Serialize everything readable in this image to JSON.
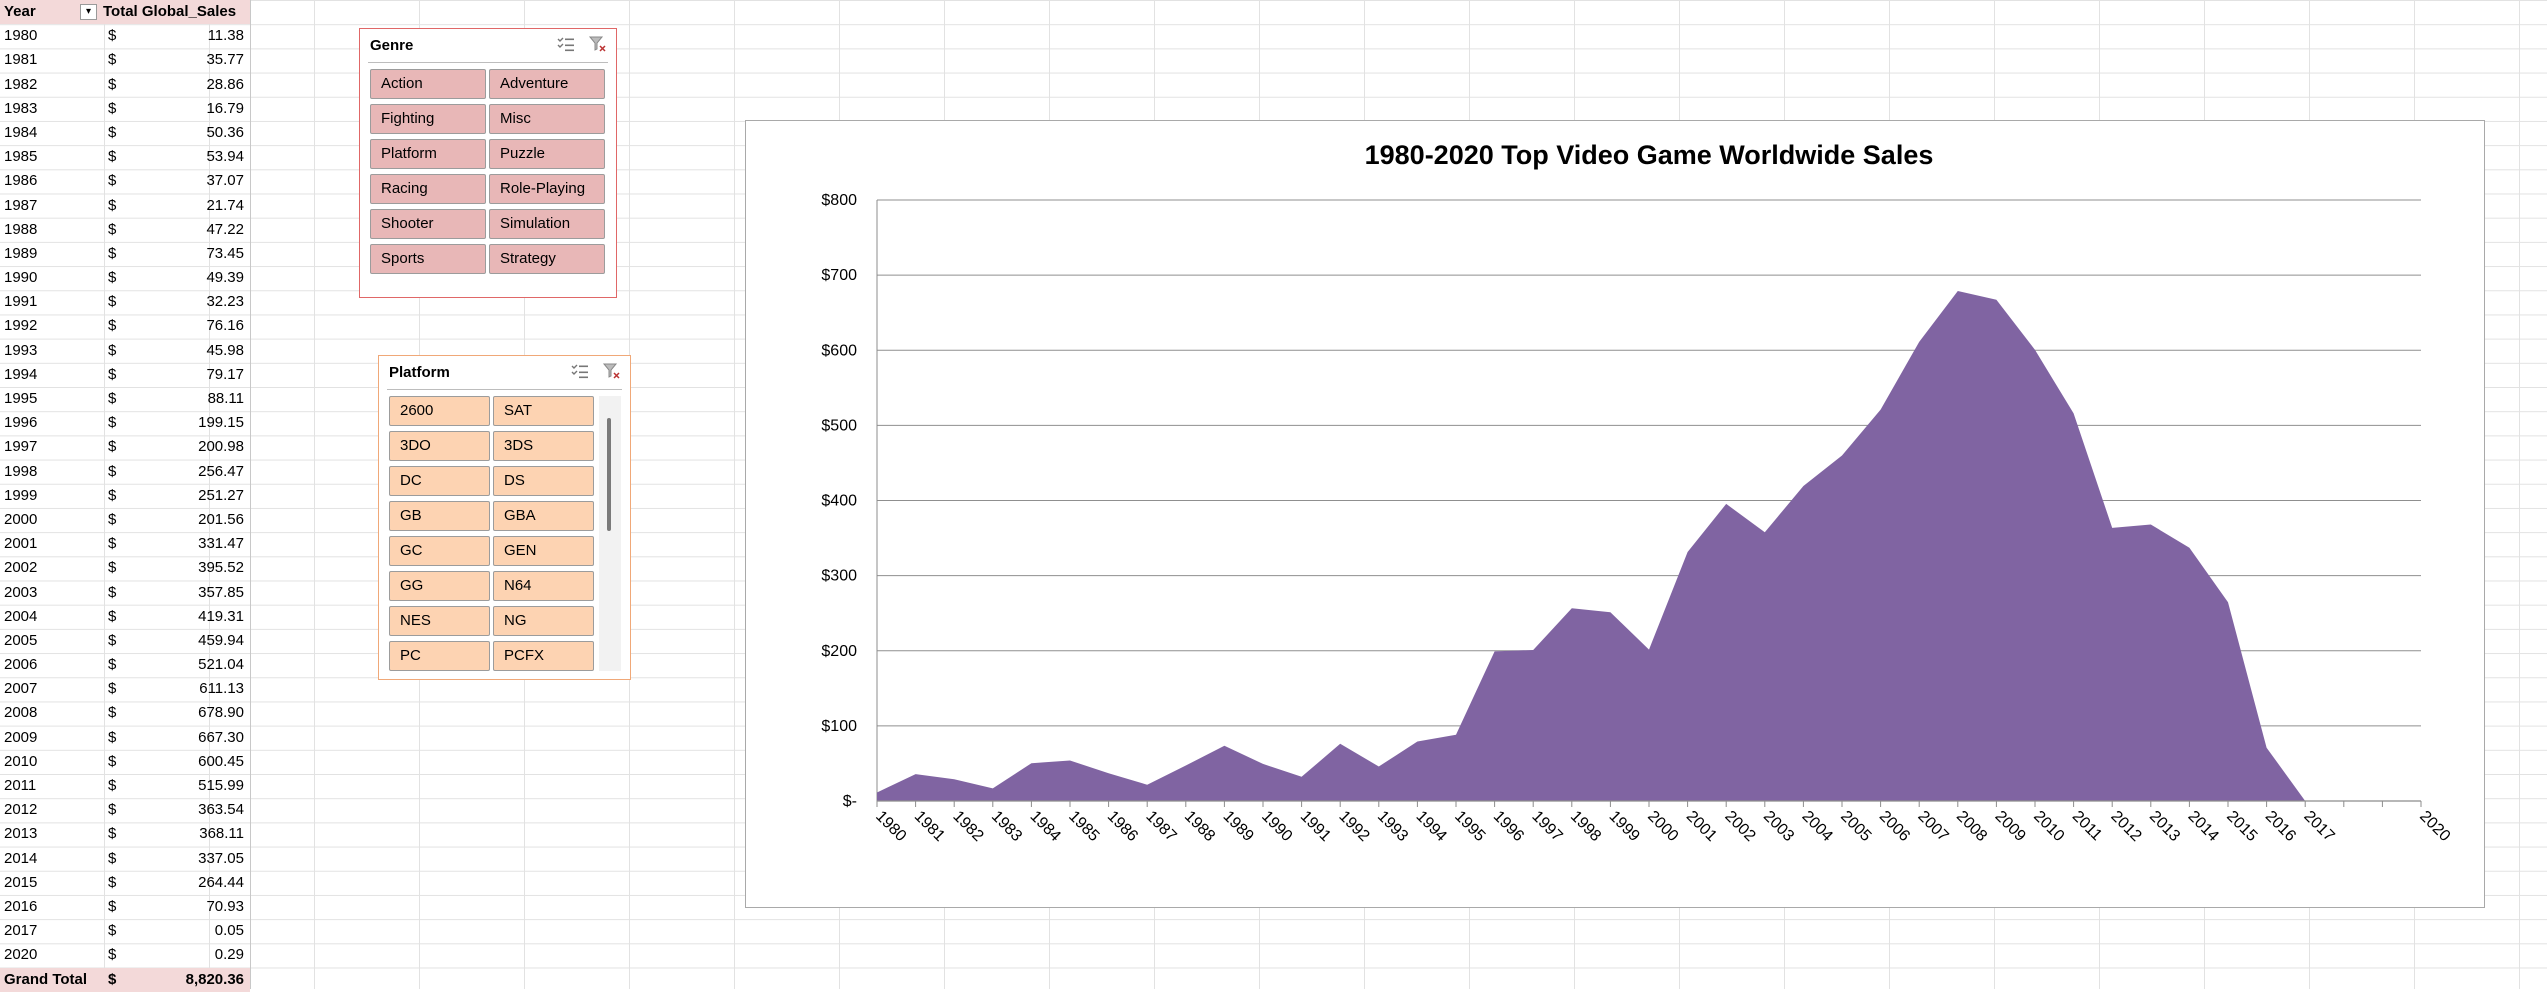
{
  "pivot": {
    "header": {
      "year": "Year",
      "sales": "Total Global_Sales",
      "filter_glyph": "▾"
    },
    "currency": "$",
    "rows": [
      {
        "year": "1980",
        "value": "11.38"
      },
      {
        "year": "1981",
        "value": "35.77"
      },
      {
        "year": "1982",
        "value": "28.86"
      },
      {
        "year": "1983",
        "value": "16.79"
      },
      {
        "year": "1984",
        "value": "50.36"
      },
      {
        "year": "1985",
        "value": "53.94"
      },
      {
        "year": "1986",
        "value": "37.07"
      },
      {
        "year": "1987",
        "value": "21.74"
      },
      {
        "year": "1988",
        "value": "47.22"
      },
      {
        "year": "1989",
        "value": "73.45"
      },
      {
        "year": "1990",
        "value": "49.39"
      },
      {
        "year": "1991",
        "value": "32.23"
      },
      {
        "year": "1992",
        "value": "76.16"
      },
      {
        "year": "1993",
        "value": "45.98"
      },
      {
        "year": "1994",
        "value": "79.17"
      },
      {
        "year": "1995",
        "value": "88.11"
      },
      {
        "year": "1996",
        "value": "199.15"
      },
      {
        "year": "1997",
        "value": "200.98"
      },
      {
        "year": "1998",
        "value": "256.47"
      },
      {
        "year": "1999",
        "value": "251.27"
      },
      {
        "year": "2000",
        "value": "201.56"
      },
      {
        "year": "2001",
        "value": "331.47"
      },
      {
        "year": "2002",
        "value": "395.52"
      },
      {
        "year": "2003",
        "value": "357.85"
      },
      {
        "year": "2004",
        "value": "419.31"
      },
      {
        "year": "2005",
        "value": "459.94"
      },
      {
        "year": "2006",
        "value": "521.04"
      },
      {
        "year": "2007",
        "value": "611.13"
      },
      {
        "year": "2008",
        "value": "678.90"
      },
      {
        "year": "2009",
        "value": "667.30"
      },
      {
        "year": "2010",
        "value": "600.45"
      },
      {
        "year": "2011",
        "value": "515.99"
      },
      {
        "year": "2012",
        "value": "363.54"
      },
      {
        "year": "2013",
        "value": "368.11"
      },
      {
        "year": "2014",
        "value": "337.05"
      },
      {
        "year": "2015",
        "value": "264.44"
      },
      {
        "year": "2016",
        "value": "70.93"
      },
      {
        "year": "2017",
        "value": "0.05"
      },
      {
        "year": "2020",
        "value": "0.29"
      }
    ],
    "total": {
      "label": "Grand Total",
      "value": "8,820.36"
    }
  },
  "genre_slicer": {
    "title": "Genre",
    "color": "#e8b7b7",
    "border_color": "#e06767",
    "items": [
      "Action",
      "Adventure",
      "Fighting",
      "Misc",
      "Platform",
      "Puzzle",
      "Racing",
      "Role-Playing",
      "Shooter",
      "Simulation",
      "Sports",
      "Strategy"
    ],
    "icons": [
      "multi-select-icon",
      "clear-filter-icon"
    ]
  },
  "platform_slicer": {
    "title": "Platform",
    "color": "#fdd3b2",
    "border_color": "#f0a878",
    "items": [
      "2600",
      "SAT",
      "3DO",
      "3DS",
      "DC",
      "DS",
      "GB",
      "GBA",
      "GC",
      "GEN",
      "GG",
      "N64",
      "NES",
      "NG",
      "PC",
      "PCFX"
    ],
    "icons": [
      "multi-select-icon",
      "clear-filter-icon"
    ]
  },
  "chart_data": {
    "type": "area",
    "title": "1980-2020 Top Video Game Worldwide Sales",
    "xlabel": "",
    "ylabel": "",
    "color": "#8064a2",
    "grid": true,
    "legend": "none",
    "x": [
      "1980",
      "1981",
      "1982",
      "1983",
      "1984",
      "1985",
      "1986",
      "1987",
      "1988",
      "1989",
      "1990",
      "1991",
      "1992",
      "1993",
      "1994",
      "1995",
      "1996",
      "1997",
      "1998",
      "1999",
      "2000",
      "2001",
      "2002",
      "2003",
      "2004",
      "2005",
      "2006",
      "2007",
      "2008",
      "2009",
      "2010",
      "2011",
      "2012",
      "2013",
      "2014",
      "2015",
      "2016",
      "2017",
      "2020"
    ],
    "values": [
      11.38,
      35.77,
      28.86,
      16.79,
      50.36,
      53.94,
      37.07,
      21.74,
      47.22,
      73.45,
      49.39,
      32.23,
      76.16,
      45.98,
      79.17,
      88.11,
      199.15,
      200.98,
      256.47,
      251.27,
      201.56,
      331.47,
      395.52,
      357.85,
      419.31,
      459.94,
      521.04,
      611.13,
      678.9,
      667.3,
      600.45,
      515.99,
      363.54,
      368.11,
      337.05,
      264.44,
      70.93,
      0.05,
      0.29
    ],
    "yticks": [
      "$-",
      "$100",
      "$200",
      "$300",
      "$400",
      "$500",
      "$600",
      "$700",
      "$800"
    ],
    "ylim": [
      0,
      800
    ]
  }
}
